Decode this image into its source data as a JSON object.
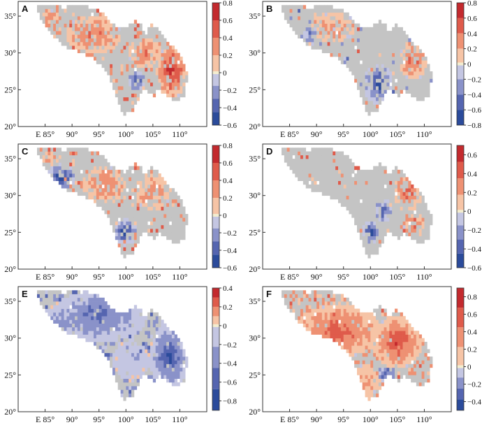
{
  "figure": {
    "x_ticks": [
      "E 85°",
      "90°",
      "95°",
      "100°",
      "105°",
      "110°"
    ],
    "x_tick_values": [
      85,
      90,
      95,
      100,
      105,
      110
    ],
    "y_ticks": [
      "20°",
      "25°",
      "30°",
      "35°"
    ],
    "y_tick_values": [
      20,
      25,
      30,
      35
    ],
    "lon_range": [
      80,
      115
    ],
    "lat_range": [
      20,
      37
    ],
    "colors": {
      "no_data_gray": "#c4c4c4",
      "frame": "#333333",
      "diverging": [
        "#2b4b9b",
        "#5565b0",
        "#8a92c9",
        "#c4c6e2",
        "#f3edcf",
        "#f6c4a6",
        "#ee9173",
        "#df5b4b",
        "#c32a2e"
      ]
    }
  },
  "panels": [
    {
      "letter": "A",
      "colorbar_ticks": [
        "0.8",
        "0.6",
        "0.4",
        "0.2",
        "0",
        "−0.2",
        "−0.4",
        "−0.6"
      ],
      "range": [
        -0.6,
        0.8
      ],
      "dominant_sign": "positive"
    },
    {
      "letter": "B",
      "colorbar_ticks": [
        "0.8",
        "0.6",
        "0.4",
        "0.2",
        "0",
        "−0.2",
        "−0.4",
        "−0.6",
        "−0.8"
      ],
      "range": [
        -0.8,
        0.8
      ],
      "dominant_sign": "mixed"
    },
    {
      "letter": "C",
      "colorbar_ticks": [
        "0.8",
        "0.6",
        "0.4",
        "0.2",
        "0",
        "−0.2",
        "−0.4",
        "−0.6"
      ],
      "range": [
        -0.6,
        0.8
      ],
      "dominant_sign": "positive"
    },
    {
      "letter": "D",
      "colorbar_ticks": [
        "0.6",
        "0.4",
        "0.2",
        "0",
        "−0.2",
        "−0.4",
        "−0.6"
      ],
      "range": [
        -0.6,
        0.7
      ],
      "dominant_sign": "positive"
    },
    {
      "letter": "E",
      "colorbar_ticks": [
        "0.4",
        "0.2",
        "0",
        "−0.2",
        "−0.4",
        "−0.6",
        "−0.8"
      ],
      "range": [
        -0.9,
        0.4
      ],
      "dominant_sign": "negative"
    },
    {
      "letter": "F",
      "colorbar_ticks": [
        "0.8",
        "0.6",
        "0.4",
        "0.2",
        "0",
        "−0.2",
        "−0.4"
      ],
      "range": [
        -0.5,
        0.9
      ],
      "dominant_sign": "positive"
    }
  ]
}
